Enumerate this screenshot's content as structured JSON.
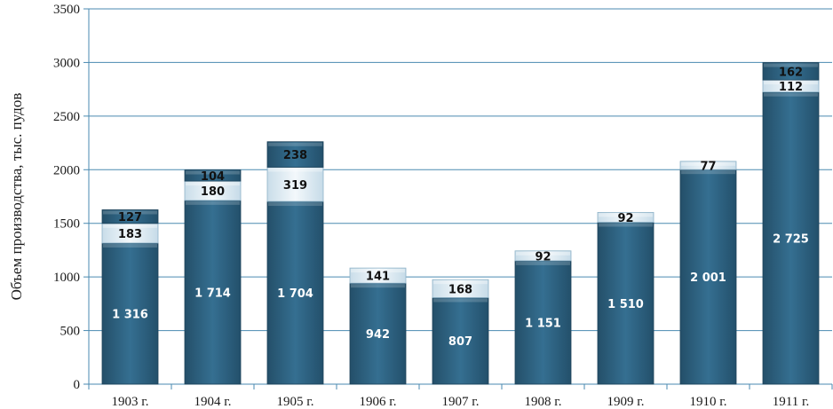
{
  "chart_data": {
    "type": "bar",
    "stacked": true,
    "title": "",
    "xlabel": "",
    "ylabel": "Объем производства, тыс. пудов",
    "ylim": [
      0,
      3500
    ],
    "yticks": [
      "0",
      "500",
      "1000",
      "1500",
      "2000",
      "2500",
      "3000",
      "3500"
    ],
    "grid": true,
    "categories": [
      "1903 г.",
      "1904 г.",
      "1905 г.",
      "1906 г.",
      "1907 г.",
      "1908 г.",
      "1909 г.",
      "1910 г.",
      "1911 г."
    ],
    "series": [
      {
        "values": [
          1316,
          1714,
          1704,
          942,
          807,
          1151,
          1510,
          2001,
          2725
        ],
        "labels": [
          "1 316",
          "1 714",
          "1 704",
          "942",
          "807",
          "1 151",
          "1 510",
          "2 001",
          "2 725"
        ],
        "color": "#2e6585"
      },
      {
        "values": [
          183,
          180,
          319,
          141,
          168,
          92,
          92,
          77,
          112
        ],
        "labels": [
          "183",
          "180",
          "319",
          "141",
          "168",
          "92",
          "92",
          "77",
          "112"
        ],
        "color": "#dbe9f1"
      },
      {
        "values": [
          127,
          104,
          238,
          null,
          null,
          null,
          null,
          null,
          162
        ],
        "labels": [
          "127",
          "104",
          "238",
          "",
          "",
          "",
          "",
          "",
          "162"
        ],
        "color": "#2e6585"
      }
    ],
    "colors": {
      "bar": "#2e6585",
      "bar_light": "#dbe9f1",
      "grid": "#4a8ab0",
      "axis": "#4a8ab0",
      "text": "#1a1a1a"
    }
  }
}
